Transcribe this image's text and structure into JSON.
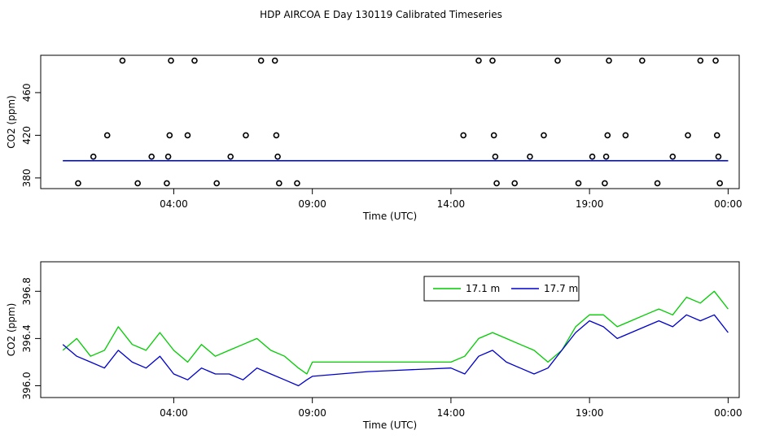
{
  "title": "HDP AIRCOA E  Day 130119  Calibrated Timeseries",
  "chart_data": [
    {
      "type": "scatter",
      "xlabel": "Time (UTC)",
      "ylabel": "CO2 (ppm)",
      "x_unit": "hours",
      "xlim": [
        -0.8,
        24.4
      ],
      "ylim": [
        370,
        495
      ],
      "xticks": [
        {
          "value": 4,
          "label": "04:00"
        },
        {
          "value": 9,
          "label": "09:00"
        },
        {
          "value": 14,
          "label": "14:00"
        },
        {
          "value": 19,
          "label": "19:00"
        },
        {
          "value": 24,
          "label": "00:00"
        }
      ],
      "yticks": [
        {
          "value": 380,
          "label": "380"
        },
        {
          "value": 420,
          "label": "420"
        },
        {
          "value": 460,
          "label": "460"
        }
      ],
      "points": [
        [
          0.55,
          375
        ],
        [
          1.1,
          400
        ],
        [
          1.6,
          420
        ],
        [
          2.15,
          490
        ],
        [
          2.7,
          375
        ],
        [
          3.2,
          400
        ],
        [
          3.75,
          375
        ],
        [
          3.8,
          400
        ],
        [
          3.85,
          420
        ],
        [
          3.9,
          490
        ],
        [
          4.5,
          420
        ],
        [
          4.75,
          490
        ],
        [
          5.55,
          375
        ],
        [
          6.05,
          400
        ],
        [
          6.6,
          420
        ],
        [
          7.15,
          490
        ],
        [
          7.65,
          490
        ],
        [
          7.7,
          420
        ],
        [
          7.75,
          400
        ],
        [
          7.8,
          375
        ],
        [
          8.45,
          375
        ],
        [
          14.45,
          420
        ],
        [
          15.0,
          490
        ],
        [
          15.5,
          490
        ],
        [
          15.55,
          420
        ],
        [
          15.6,
          400
        ],
        [
          15.65,
          375
        ],
        [
          16.3,
          375
        ],
        [
          16.85,
          400
        ],
        [
          17.35,
          420
        ],
        [
          17.85,
          490
        ],
        [
          18.6,
          375
        ],
        [
          19.1,
          400
        ],
        [
          19.55,
          375
        ],
        [
          19.6,
          400
        ],
        [
          19.65,
          420
        ],
        [
          19.7,
          490
        ],
        [
          20.3,
          420
        ],
        [
          20.9,
          490
        ],
        [
          21.45,
          375
        ],
        [
          22.0,
          400
        ],
        [
          22.55,
          420
        ],
        [
          23.0,
          490
        ],
        [
          23.55,
          490
        ],
        [
          23.6,
          420
        ],
        [
          23.65,
          400
        ],
        [
          23.7,
          375
        ]
      ],
      "series": [
        {
          "name": "17.1 m",
          "color": "#00a0a0",
          "values_ppm": 396.2
        },
        {
          "name": "17.7 m",
          "color": "#0000cc",
          "values_ppm": 396.1
        }
      ]
    },
    {
      "type": "line",
      "xlabel": "Time (UTC)",
      "ylabel": "CO2 (ppm)",
      "xlim": [
        -0.8,
        24.4
      ],
      "ylim": [
        395.9,
        397.05
      ],
      "xticks": [
        {
          "value": 4,
          "label": "04:00"
        },
        {
          "value": 9,
          "label": "09:00"
        },
        {
          "value": 14,
          "label": "14:00"
        },
        {
          "value": 19,
          "label": "19:00"
        },
        {
          "value": 24,
          "label": "00:00"
        }
      ],
      "yticks": [
        {
          "value": 396.0,
          "label": "396.0"
        },
        {
          "value": 396.4,
          "label": "396.4"
        },
        {
          "value": 396.8,
          "label": "396.8"
        }
      ],
      "legend_position": "top-right",
      "series": [
        {
          "name": "17.1 m",
          "color": "#00cc00",
          "x": [
            0,
            0.5,
            1,
            1.5,
            2,
            2.5,
            3,
            3.5,
            4,
            4.5,
            5,
            5.5,
            6,
            6.5,
            7,
            7.5,
            8,
            8.5,
            8.8,
            9.0,
            9.5,
            10,
            11,
            12,
            13,
            14,
            14.5,
            15,
            15.5,
            16,
            16.5,
            17,
            17.5,
            18,
            18.5,
            19,
            19.5,
            20,
            20.5,
            21,
            21.5,
            22,
            22.5,
            23,
            23.5,
            24
          ],
          "values": [
            396.3,
            396.4,
            396.25,
            396.3,
            396.5,
            396.35,
            396.3,
            396.45,
            396.3,
            396.2,
            396.35,
            396.25,
            396.3,
            396.35,
            396.4,
            396.3,
            396.25,
            396.15,
            396.1,
            396.2,
            396.2,
            396.2,
            396.2,
            396.2,
            396.2,
            396.2,
            396.25,
            396.4,
            396.45,
            396.4,
            396.35,
            396.3,
            396.2,
            396.3,
            396.5,
            396.6,
            396.6,
            396.5,
            396.55,
            396.6,
            396.65,
            396.6,
            396.75,
            396.7,
            396.8,
            396.65
          ]
        },
        {
          "name": "17.7 m",
          "color": "#0000cc",
          "x": [
            0,
            0.5,
            1,
            1.5,
            2,
            2.5,
            3,
            3.5,
            4,
            4.5,
            5,
            5.5,
            6,
            6.5,
            7,
            7.5,
            8,
            8.5,
            8.8,
            9.0,
            10,
            11,
            12,
            13,
            14,
            14.5,
            15,
            15.5,
            16,
            16.5,
            17,
            17.5,
            18,
            18.5,
            19,
            19.5,
            20,
            20.5,
            21,
            21.5,
            22,
            22.5,
            23,
            23.5,
            24
          ],
          "values": [
            396.35,
            396.25,
            396.2,
            396.15,
            396.3,
            396.2,
            396.15,
            396.25,
            396.1,
            396.05,
            396.15,
            396.1,
            396.1,
            396.05,
            396.15,
            396.1,
            396.05,
            396.0,
            396.05,
            396.08,
            396.1,
            396.12,
            396.13,
            396.14,
            396.15,
            396.1,
            396.25,
            396.3,
            396.2,
            396.15,
            396.1,
            396.15,
            396.3,
            396.45,
            396.55,
            396.5,
            396.4,
            396.45,
            396.5,
            396.55,
            396.5,
            396.6,
            396.55,
            396.6,
            396.45
          ]
        }
      ]
    }
  ]
}
